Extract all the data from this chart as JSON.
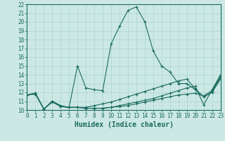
{
  "xlabel": "Humidex (Indice chaleur)",
  "bg_color": "#cce8e4",
  "grid_color": "#aad4ce",
  "line_color": "#1a6b60",
  "xlim": [
    0,
    23
  ],
  "ylim": [
    10,
    22
  ],
  "xticks": [
    0,
    1,
    2,
    3,
    4,
    5,
    6,
    7,
    8,
    9,
    10,
    11,
    12,
    13,
    14,
    15,
    16,
    17,
    18,
    19,
    20,
    21,
    22,
    23
  ],
  "yticks": [
    10,
    11,
    12,
    13,
    14,
    15,
    16,
    17,
    18,
    19,
    20,
    21,
    22
  ],
  "series": [
    [
      11.7,
      11.9,
      10.1,
      11.0,
      10.5,
      10.3,
      15.0,
      12.5,
      12.3,
      12.2,
      17.5,
      19.5,
      21.3,
      21.7,
      20.0,
      16.7,
      15.0,
      14.3,
      13.0,
      13.0,
      12.3,
      11.5,
      12.0,
      13.7
    ],
    [
      11.7,
      11.9,
      10.1,
      11.0,
      10.4,
      10.3,
      10.3,
      10.2,
      10.2,
      10.2,
      10.3,
      10.4,
      10.5,
      10.7,
      10.9,
      11.1,
      11.3,
      11.5,
      11.7,
      11.8,
      11.9,
      11.6,
      12.2,
      13.8
    ],
    [
      11.7,
      11.9,
      10.1,
      11.0,
      10.4,
      10.3,
      10.3,
      10.2,
      10.2,
      10.2,
      10.3,
      10.5,
      10.7,
      10.9,
      11.1,
      11.3,
      11.6,
      11.9,
      12.2,
      12.5,
      12.7,
      10.6,
      12.3,
      14.0
    ],
    [
      11.7,
      11.8,
      10.1,
      10.9,
      10.4,
      10.3,
      10.3,
      10.3,
      10.5,
      10.7,
      10.9,
      11.2,
      11.5,
      11.8,
      12.1,
      12.4,
      12.7,
      13.0,
      13.3,
      13.5,
      12.4,
      11.5,
      12.0,
      13.5
    ]
  ],
  "tick_fontsize": 5.5,
  "xlabel_fontsize": 7.0,
  "lw": 0.8,
  "marker_size": 3.5,
  "marker_ew": 0.8
}
